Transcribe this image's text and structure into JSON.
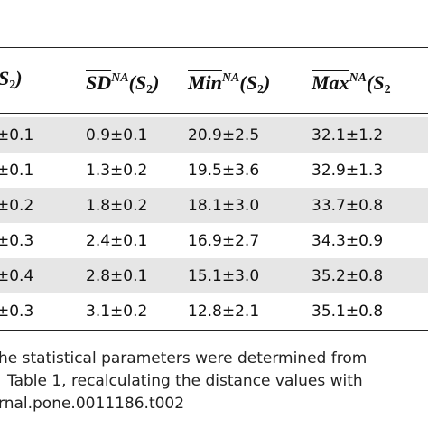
{
  "table": {
    "header": [
      {
        "arg": "S",
        "sub": "2",
        "close": ")"
      },
      {
        "name": "SD",
        "sup": "NA",
        "arg": "(S",
        "sub": "2",
        "close": ")"
      },
      {
        "name": "Min",
        "sup": "NA",
        "arg": "(S",
        "sub": "2",
        "close": ")"
      },
      {
        "name": "Max",
        "sup": "NA",
        "arg": "(S",
        "sub": "2"
      }
    ],
    "rows": [
      [
        "±0.1",
        "0.9±0.1",
        "20.9±2.5",
        "32.1±1.2"
      ],
      [
        "±0.1",
        "1.3±0.2",
        "19.5±3.6",
        "32.9±1.3"
      ],
      [
        "±0.2",
        "1.8±0.2",
        "18.1±3.0",
        "33.7±0.8"
      ],
      [
        "±0.3",
        "2.4±0.1",
        "16.9±2.7",
        "34.3±0.9"
      ],
      [
        "±0.4",
        "2.8±0.1",
        "15.1±3.0",
        "35.2±0.8"
      ],
      [
        "±0.3",
        "3.1±0.2",
        "12.8±2.1",
        "35.1±0.8"
      ]
    ],
    "footnote": [
      "he statistical parameters were determined from",
      "Table 1, recalculating the distance values with",
      "rnal.pone.0011186.t002"
    ]
  }
}
